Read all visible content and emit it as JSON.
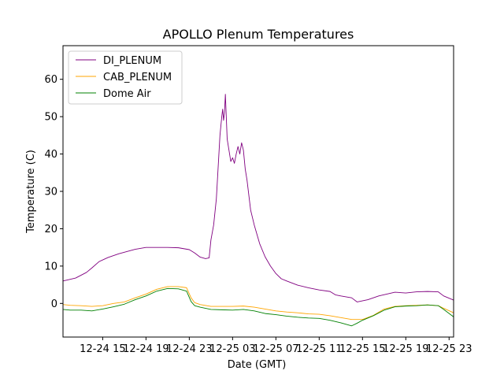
{
  "chart_data": {
    "type": "line",
    "title": "APOLLO Plenum Temperatures",
    "xlabel": "Date (GMT)",
    "ylabel": "Temperature (C)",
    "x_unit": "hours",
    "xlim": [
      "12-24 11:20",
      "12-25 23:25"
    ],
    "ylim": [
      -9,
      69
    ],
    "x_ticks": [
      "12-24 15",
      "12-24 19",
      "12-24 23",
      "12-25 03",
      "12-25 07",
      "12-25 11",
      "12-25 15",
      "12-25 19",
      "12-25 23"
    ],
    "y_ticks": [
      0,
      10,
      20,
      30,
      40,
      50,
      60
    ],
    "grid": false,
    "legend_position": "top-left",
    "series": [
      {
        "name": "DI_PLENUM",
        "color": "#800080",
        "points": [
          [
            "12-24 11:20",
            6.0
          ],
          [
            "12-24 12:30",
            6.8
          ],
          [
            "12-24 13:30",
            8.3
          ],
          [
            "12-24 14:00",
            9.5
          ],
          [
            "12-24 14:40",
            11.2
          ],
          [
            "12-24 15:30",
            12.3
          ],
          [
            "12-24 16:30",
            13.3
          ],
          [
            "12-24 18:00",
            14.5
          ],
          [
            "12-24 19:00",
            15.0
          ],
          [
            "12-24 20:00",
            15.0
          ],
          [
            "12-24 21:00",
            15.0
          ],
          [
            "12-24 22:00",
            14.9
          ],
          [
            "12-24 23:00",
            14.4
          ],
          [
            "12-24 23:30",
            13.5
          ],
          [
            "12-25 00:00",
            12.4
          ],
          [
            "12-25 00:30",
            12.0
          ],
          [
            "12-25 00:50",
            12.2
          ],
          [
            "12-25 01:00",
            17.0
          ],
          [
            "12-25 01:15",
            21.0
          ],
          [
            "12-25 01:30",
            28.0
          ],
          [
            "12-25 01:50",
            45.0
          ],
          [
            "12-25 02:00",
            50.0
          ],
          [
            "12-25 02:05",
            52.0
          ],
          [
            "12-25 02:10",
            49.0
          ],
          [
            "12-25 02:15",
            51.0
          ],
          [
            "12-25 02:20",
            56.0
          ],
          [
            "12-25 02:25",
            50.0
          ],
          [
            "12-25 02:30",
            44.0
          ],
          [
            "12-25 02:40",
            41.0
          ],
          [
            "12-25 02:50",
            38.0
          ],
          [
            "12-25 03:00",
            39.0
          ],
          [
            "12-25 03:10",
            37.5
          ],
          [
            "12-25 03:20",
            40.0
          ],
          [
            "12-25 03:30",
            42.0
          ],
          [
            "12-25 03:40",
            40.0
          ],
          [
            "12-25 03:50",
            43.0
          ],
          [
            "12-25 04:00",
            41.0
          ],
          [
            "12-25 04:10",
            36.0
          ],
          [
            "12-25 04:20",
            33.0
          ],
          [
            "12-25 04:40",
            25.0
          ],
          [
            "12-25 05:00",
            21.0
          ],
          [
            "12-25 05:30",
            16.0
          ],
          [
            "12-25 06:00",
            12.5
          ],
          [
            "12-25 06:30",
            10.0
          ],
          [
            "12-25 07:00",
            8.0
          ],
          [
            "12-25 07:30",
            6.6
          ],
          [
            "12-25 08:00",
            6.0
          ],
          [
            "12-25 09:00",
            4.9
          ],
          [
            "12-25 10:00",
            4.2
          ],
          [
            "12-25 11:00",
            3.6
          ],
          [
            "12-25 12:00",
            3.2
          ],
          [
            "12-25 12:30",
            2.3
          ],
          [
            "12-25 13:00",
            2.0
          ],
          [
            "12-25 14:00",
            1.5
          ],
          [
            "12-25 14:30",
            0.4
          ],
          [
            "12-25 15:30",
            1.0
          ],
          [
            "12-25 16:30",
            2.0
          ],
          [
            "12-25 18:00",
            3.0
          ],
          [
            "12-25 19:00",
            2.8
          ],
          [
            "12-25 20:00",
            3.1
          ],
          [
            "12-25 21:00",
            3.2
          ],
          [
            "12-25 22:00",
            3.1
          ],
          [
            "12-25 22:30",
            2.0
          ],
          [
            "12-25 23:25",
            0.9
          ]
        ]
      },
      {
        "name": "CAB_PLENUM",
        "color": "#ffa500",
        "points": [
          [
            "12-24 11:20",
            -0.3
          ],
          [
            "12-24 12:00",
            -0.5
          ],
          [
            "12-24 13:00",
            -0.6
          ],
          [
            "12-24 14:00",
            -0.8
          ],
          [
            "12-24 15:00",
            -0.6
          ],
          [
            "12-24 16:00",
            0.0
          ],
          [
            "12-24 17:00",
            0.4
          ],
          [
            "12-24 18:00",
            1.5
          ],
          [
            "12-24 19:00",
            2.5
          ],
          [
            "12-24 20:00",
            3.8
          ],
          [
            "12-24 21:00",
            4.5
          ],
          [
            "12-24 22:00",
            4.5
          ],
          [
            "12-24 22:45",
            4.2
          ],
          [
            "12-24 23:10",
            1.5
          ],
          [
            "12-24 23:30",
            0.2
          ],
          [
            "12-25 00:00",
            -0.3
          ],
          [
            "12-25 01:00",
            -0.8
          ],
          [
            "12-25 02:00",
            -0.8
          ],
          [
            "12-25 03:00",
            -0.8
          ],
          [
            "12-25 04:00",
            -0.7
          ],
          [
            "12-25 05:00",
            -1.0
          ],
          [
            "12-25 06:00",
            -1.5
          ],
          [
            "12-25 07:00",
            -2.0
          ],
          [
            "12-25 08:00",
            -2.3
          ],
          [
            "12-25 09:00",
            -2.5
          ],
          [
            "12-25 10:00",
            -2.8
          ],
          [
            "12-25 11:00",
            -2.9
          ],
          [
            "12-25 12:00",
            -3.3
          ],
          [
            "12-25 13:00",
            -3.8
          ],
          [
            "12-25 14:00",
            -4.3
          ],
          [
            "12-25 15:00",
            -4.3
          ],
          [
            "12-25 16:00",
            -3.2
          ],
          [
            "12-25 17:00",
            -1.5
          ],
          [
            "12-25 18:00",
            -0.8
          ],
          [
            "12-25 19:00",
            -0.6
          ],
          [
            "12-25 20:00",
            -0.5
          ],
          [
            "12-25 21:00",
            -0.4
          ],
          [
            "12-25 22:00",
            -0.6
          ],
          [
            "12-25 22:30",
            -1.3
          ],
          [
            "12-25 23:25",
            -2.5
          ]
        ]
      },
      {
        "name": "Dome Air",
        "color": "#008000",
        "points": [
          [
            "12-24 11:20",
            -1.6
          ],
          [
            "12-24 12:00",
            -1.8
          ],
          [
            "12-24 13:00",
            -1.8
          ],
          [
            "12-24 14:00",
            -2.0
          ],
          [
            "12-24 15:00",
            -1.5
          ],
          [
            "12-24 16:00",
            -0.9
          ],
          [
            "12-24 17:00",
            -0.2
          ],
          [
            "12-24 18:00",
            1.0
          ],
          [
            "12-24 19:00",
            2.0
          ],
          [
            "12-24 20:00",
            3.3
          ],
          [
            "12-24 21:00",
            4.0
          ],
          [
            "12-24 22:00",
            3.9
          ],
          [
            "12-24 22:45",
            3.3
          ],
          [
            "12-24 23:10",
            0.5
          ],
          [
            "12-24 23:30",
            -0.6
          ],
          [
            "12-25 00:00",
            -1.0
          ],
          [
            "12-25 01:00",
            -1.6
          ],
          [
            "12-25 02:00",
            -1.7
          ],
          [
            "12-25 03:00",
            -1.8
          ],
          [
            "12-25 04:00",
            -1.6
          ],
          [
            "12-25 05:00",
            -2.0
          ],
          [
            "12-25 06:00",
            -2.7
          ],
          [
            "12-25 07:00",
            -3.0
          ],
          [
            "12-25 08:00",
            -3.4
          ],
          [
            "12-25 09:00",
            -3.7
          ],
          [
            "12-25 10:00",
            -3.9
          ],
          [
            "12-25 11:00",
            -4.0
          ],
          [
            "12-25 12:00",
            -4.5
          ],
          [
            "12-25 13:00",
            -5.2
          ],
          [
            "12-25 14:00",
            -6.0
          ],
          [
            "12-25 14:30",
            -5.3
          ],
          [
            "12-25 15:00",
            -4.5
          ],
          [
            "12-25 16:00",
            -3.3
          ],
          [
            "12-25 17:00",
            -1.8
          ],
          [
            "12-25 18:00",
            -0.9
          ],
          [
            "12-25 19:00",
            -0.7
          ],
          [
            "12-25 20:00",
            -0.6
          ],
          [
            "12-25 21:00",
            -0.4
          ],
          [
            "12-25 22:00",
            -0.6
          ],
          [
            "12-25 22:30",
            -1.6
          ],
          [
            "12-25 23:25",
            -3.6
          ]
        ]
      }
    ]
  }
}
